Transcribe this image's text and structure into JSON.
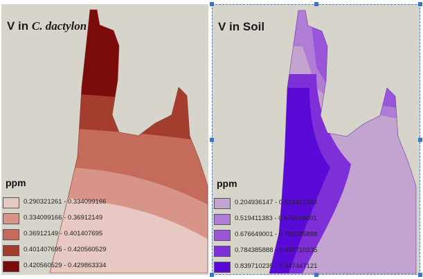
{
  "panels": [
    {
      "title_prefix": "V in ",
      "title_species": "C. dactylon",
      "unit": "ppm",
      "legend": [
        {
          "label": "0.290321261 - 0.334099166",
          "color": "#e8c8c2"
        },
        {
          "label": "0.334099166 - 0.36912149",
          "color": "#d9948a"
        },
        {
          "label": "0.36912149 - 0.401407695",
          "color": "#c46b5b"
        },
        {
          "label": "0.401407695 - 0.420560529",
          "color": "#a53d2e"
        },
        {
          "label": "0.420560529 - 0.429863334",
          "color": "#7a0b0b"
        }
      ]
    },
    {
      "title_prefix": "V in Soil",
      "title_species": "",
      "unit": "ppm",
      "legend": [
        {
          "label": "0.204936147 - 0.519411383",
          "color": "#c3a3d0"
        },
        {
          "label": "0.519411383 - 0.676649001",
          "color": "#b07dd6"
        },
        {
          "label": "0.676649001 - 0.784385888",
          "color": "#9a55d9"
        },
        {
          "label": "0.784385888 - 0.839710235",
          "color": "#7f2fd8"
        },
        {
          "label": "0.839710235 - 0.947447121",
          "color": "#5a0ad6"
        }
      ]
    }
  ],
  "colors": {
    "background": "#d6d4cb",
    "selection_border": "#4a7fc4"
  }
}
